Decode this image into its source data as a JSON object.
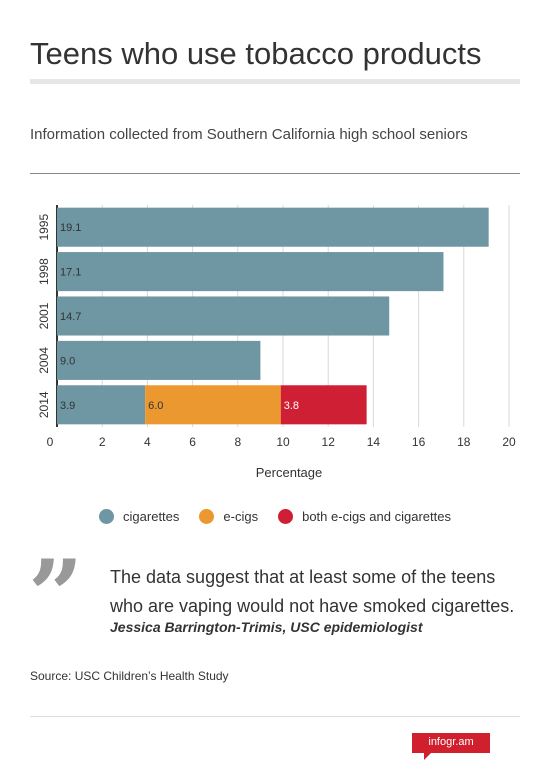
{
  "header": {
    "title": "Teens who use tobacco products",
    "subtitle": "Information collected from Southern California high school seniors"
  },
  "chart_data": {
    "type": "bar",
    "orientation": "horizontal",
    "stacked": true,
    "categories": [
      "1995",
      "1998",
      "2001",
      "2004",
      "2014"
    ],
    "series": [
      {
        "name": "cigarettes",
        "color": "#6e97a3",
        "values": [
          19.1,
          17.1,
          14.7,
          9.0,
          3.9
        ],
        "labels": [
          "19.1",
          "17.1",
          "14.7",
          "9.0",
          "3.9"
        ]
      },
      {
        "name": "e-cigs",
        "color": "#ec9830",
        "values": [
          0,
          0,
          0,
          0,
          6.0
        ],
        "labels": [
          "",
          "",
          "",
          "",
          "6.0"
        ]
      },
      {
        "name": "both e-cigs and cigarettes",
        "color": "#cf1f35",
        "values": [
          0,
          0,
          0,
          0,
          3.8
        ],
        "labels": [
          "",
          "",
          "",
          "",
          "3.8"
        ]
      }
    ],
    "xlabel": "Percentage",
    "ylabel": "",
    "xlim": [
      0,
      20
    ],
    "xticks": [
      "0",
      "2",
      "4",
      "6",
      "8",
      "10",
      "12",
      "14",
      "16",
      "18",
      "20"
    ],
    "grid": true,
    "legend": "bottom"
  },
  "quote": {
    "mark": "”",
    "text": "The data suggest that at least some of the teens who are vaping would not have smoked cigarettes.",
    "author": "Jessica Barrington-Trimis, USC epidemiologist"
  },
  "source": "Source: USC Children’s Health Study",
  "brand": "infogr.am"
}
